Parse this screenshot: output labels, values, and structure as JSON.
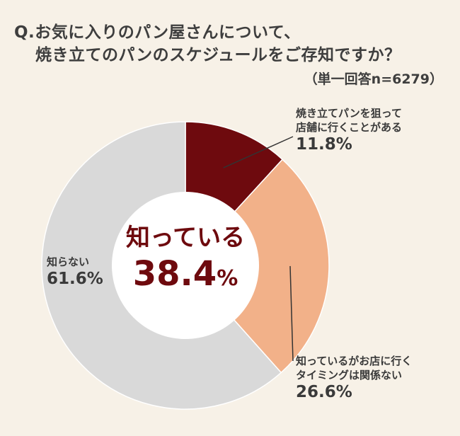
{
  "question": {
    "line1": "Q.お気に入りのパン屋さんについて、",
    "line2": "焼き立てのパンのスケジュールをご存知ですか？",
    "note": "（単一回答n=6279）"
  },
  "center": {
    "label": "知っている",
    "value": "38.4",
    "unit": "%"
  },
  "colors": {
    "background": "#f7f1e7",
    "dark_red": "#6e0a0e",
    "peach": "#f2b189",
    "gray": "#d9d9d9",
    "accent_text": "#6e0a0e"
  },
  "chart_data": {
    "type": "pie",
    "style": "donut",
    "slices": [
      {
        "label_lines": [
          "焼き立てパンを狙って",
          "店舗に行くことがある"
        ],
        "value": 11.8,
        "value_text": "11.8%",
        "color": "#6e0a0e"
      },
      {
        "label_lines": [
          "知っているがお店に行く",
          "タイミングは関係ない"
        ],
        "value": 26.6,
        "value_text": "26.6%",
        "color": "#f2b189"
      },
      {
        "label_lines": [
          "知らない"
        ],
        "value": 61.6,
        "value_text": "61.6%",
        "color": "#d9d9d9"
      }
    ]
  }
}
